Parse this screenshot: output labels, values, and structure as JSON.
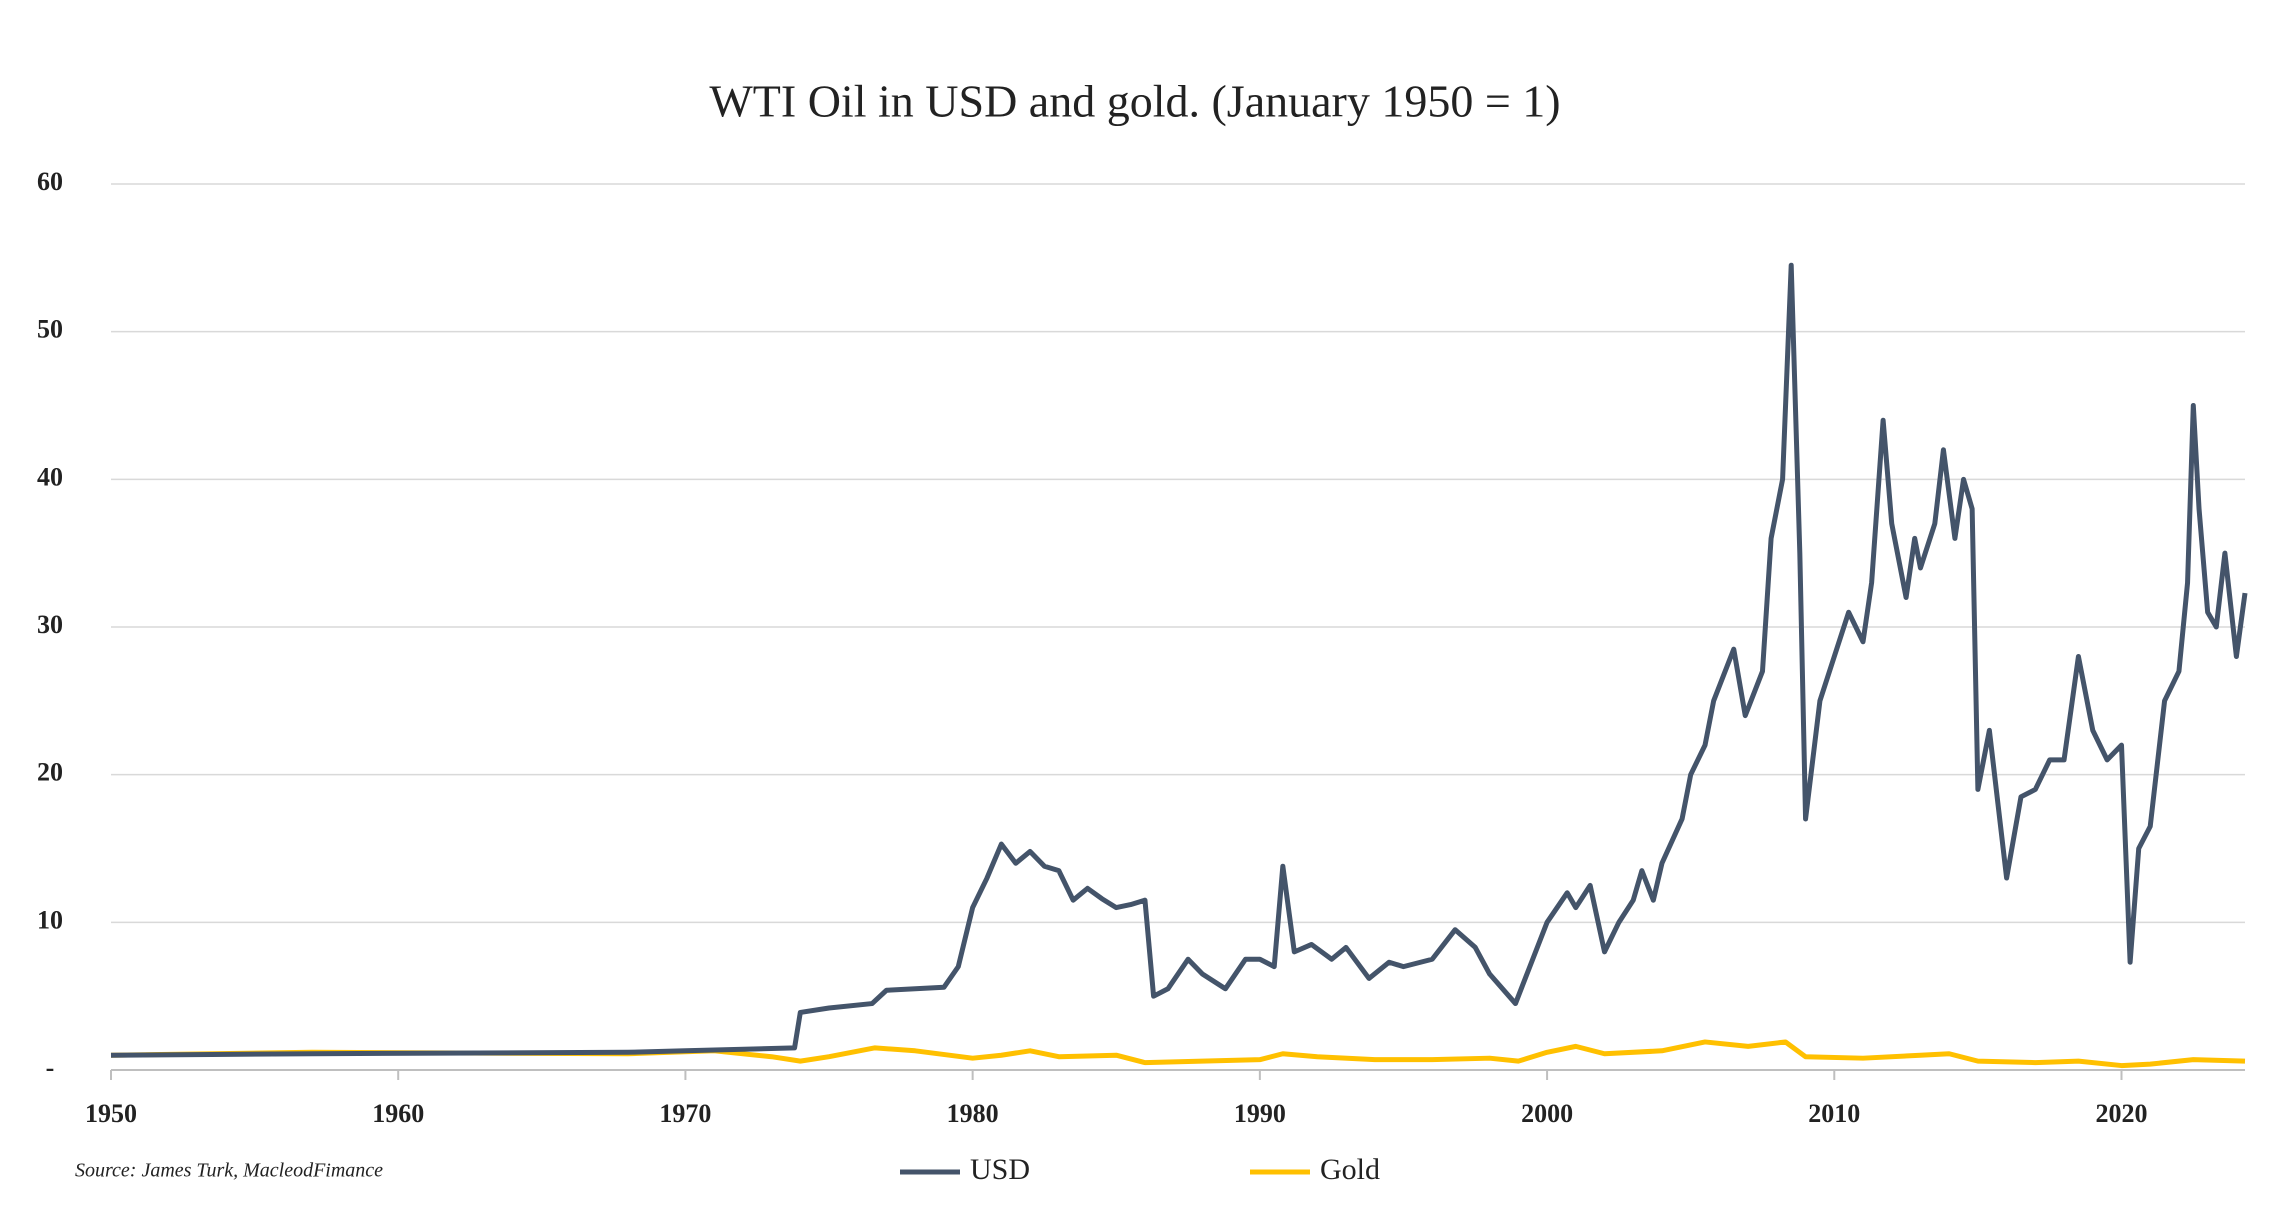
{
  "chart_data": {
    "type": "line",
    "title": "WTI Oil in USD and gold. (January 1950 = 1)",
    "source": "Source: James Turk, MacleodFimance",
    "xlim": [
      1950,
      2024.3
    ],
    "xticks": [
      1950,
      1960,
      1970,
      1980,
      1990,
      2000,
      2010,
      2020
    ],
    "ylim": [
      0,
      60
    ],
    "yticks": [
      {
        "value": 0,
        "label": "-"
      },
      10,
      20,
      30,
      40,
      50,
      60
    ],
    "grid": true,
    "legend": "bottom",
    "series": [
      {
        "name": "USD",
        "color": "#44546a",
        "x": [
          1950,
          1953.5,
          1957,
          1968,
          1970,
          1973.8,
          1974,
          1975,
          1976.5,
          1977,
          1979,
          1979.5,
          1980,
          1980.5,
          1981,
          1981.5,
          1982,
          1982.5,
          1983,
          1983.5,
          1984,
          1984.5,
          1985,
          1985.5,
          1986,
          1986.3,
          1986.8,
          1987.5,
          1988,
          1988.8,
          1989.5,
          1990,
          1990.5,
          1990.8,
          1991.2,
          1991.8,
          1992.5,
          1993,
          1993.8,
          1994.5,
          1995,
          1996,
          1996.8,
          1997.5,
          1998,
          1998.9,
          1999.5,
          2000,
          2000.7,
          2001,
          2001.5,
          2002,
          2002.5,
          2003,
          2003.3,
          2003.7,
          2004,
          2004.7,
          2005,
          2005.5,
          2005.8,
          2006.5,
          2006.9,
          2007.5,
          2007.8,
          2008.2,
          2008.5,
          2008.8,
          2009,
          2009.5,
          2010,
          2010.5,
          2011,
          2011.3,
          2011.7,
          2012,
          2012.5,
          2012.8,
          2013,
          2013.5,
          2013.8,
          2014.2,
          2014.5,
          2014.8,
          2015,
          2015.4,
          2015.7,
          2016,
          2016.5,
          2017,
          2017.5,
          2018,
          2018.5,
          2019,
          2019.5,
          2020,
          2020.3,
          2020.6,
          2021,
          2021.5,
          2022,
          2022.3,
          2022.5,
          2022.7,
          2023,
          2023.3,
          2023.6,
          2024,
          2024.3
        ],
        "values": [
          1,
          1.05,
          1.1,
          1.2,
          1.3,
          1.5,
          3.9,
          4.2,
          4.5,
          5.4,
          5.6,
          7,
          11,
          13,
          15.3,
          14,
          14.8,
          13.8,
          13.5,
          11.5,
          12.3,
          11.6,
          11,
          11.2,
          11.5,
          5,
          5.5,
          7.5,
          6.5,
          5.5,
          7.5,
          7.5,
          7,
          13.8,
          8,
          8.5,
          7.5,
          8.3,
          6.2,
          7.3,
          7,
          7.5,
          9.5,
          8.3,
          6.5,
          4.5,
          7.5,
          10,
          12,
          11,
          12.5,
          8,
          10,
          11.5,
          13.5,
          11.5,
          14,
          17,
          20,
          22,
          25,
          28.5,
          24,
          27,
          36,
          40,
          54.5,
          35,
          17,
          25,
          28,
          31,
          29,
          33,
          44,
          37,
          32,
          36,
          34,
          37,
          42,
          36,
          40,
          38,
          19,
          23,
          18,
          13,
          18.5,
          19,
          21,
          21,
          28,
          23,
          21,
          22,
          7.3,
          15,
          16.5,
          25,
          27,
          33,
          45,
          38,
          31,
          30,
          35,
          28,
          32.3
        ]
      },
      {
        "name": "Gold",
        "color": "#ffc000",
        "x": [
          1950,
          1957,
          1968,
          1971,
          1973,
          1974,
          1975,
          1976.6,
          1978,
          1980,
          1981,
          1982,
          1983,
          1985,
          1986,
          1988,
          1990,
          1990.8,
          1992,
          1994,
          1996,
          1998,
          1999,
          2000,
          2001,
          2002,
          2004,
          2005.5,
          2007,
          2008.3,
          2009,
          2011,
          2013,
          2014,
          2015,
          2017,
          2018.5,
          2020,
          2021,
          2022.5,
          2024.3
        ],
        "values": [
          1,
          1.2,
          1.1,
          1.3,
          0.9,
          0.6,
          0.9,
          1.5,
          1.3,
          0.8,
          1,
          1.3,
          0.9,
          1,
          0.5,
          0.6,
          0.7,
          1.1,
          0.9,
          0.7,
          0.7,
          0.8,
          0.6,
          1.2,
          1.6,
          1.1,
          1.3,
          1.9,
          1.6,
          1.9,
          0.9,
          0.8,
          1,
          1.1,
          0.6,
          0.5,
          0.6,
          0.3,
          0.4,
          0.7,
          0.6
        ]
      }
    ]
  }
}
